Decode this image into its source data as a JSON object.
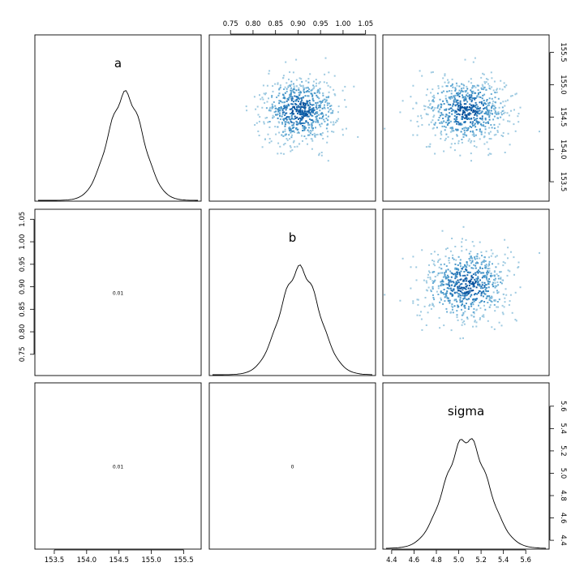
{
  "chart_data": {
    "type": "pairs",
    "variables": [
      "a",
      "b",
      "sigma"
    ],
    "ranges": {
      "a": [
        153.25,
        155.72
      ],
      "b": [
        0.71,
        1.065
      ],
      "sigma": [
        4.35,
        5.78
      ]
    },
    "ticks": {
      "a": [
        "153.5",
        "154.0",
        "154.5",
        "155.0",
        "155.5"
      ],
      "b": [
        "0.75",
        "0.80",
        "0.85",
        "0.90",
        "0.95",
        "1.00",
        "1.05"
      ],
      "sigma": [
        "4.4",
        "4.6",
        "4.8",
        "5.0",
        "5.2",
        "5.4",
        "5.6"
      ]
    },
    "posterior": {
      "a": {
        "mean": 154.6,
        "sd": 0.27
      },
      "b": {
        "mean": 0.904,
        "sd": 0.043
      },
      "sigma": {
        "mean": 5.07,
        "sd": 0.19
      }
    },
    "correlations": {
      "a_b": "0.01",
      "a_sigma": "0.01",
      "b_sigma": "0"
    },
    "point_colors": [
      "#9ecae1",
      "#6baed6",
      "#4292c6",
      "#2171b5",
      "#08519c"
    ]
  }
}
